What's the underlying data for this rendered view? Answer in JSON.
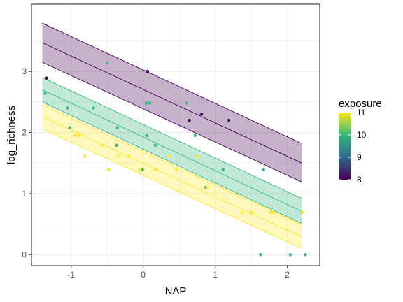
{
  "chart_data": {
    "type": "scatter",
    "title": "",
    "xlabel": "NAP",
    "ylabel": "log_richness",
    "xlim": [
      -1.55,
      2.45
    ],
    "ylim": [
      -0.18,
      4.1
    ],
    "x_ticks": [
      -1,
      0,
      1,
      2
    ],
    "x_tick_labels": [
      "-1",
      "0",
      "1",
      "2"
    ],
    "y_ticks": [
      0,
      1,
      2,
      3
    ],
    "y_tick_labels": [
      "0",
      "1",
      "2",
      "3"
    ],
    "grid": true,
    "legend": {
      "title": "exposure",
      "type": "colorbar",
      "placement": "right",
      "range": [
        8,
        11
      ],
      "breaks": [
        8,
        9,
        10,
        11
      ],
      "break_labels": [
        "8",
        "9",
        "10",
        "11"
      ]
    },
    "color_scale": {
      "8": "#440154",
      "9": "#31688e",
      "10": "#35b779",
      "11": "#fde725"
    },
    "points": [
      {
        "x": -1.34,
        "y": 2.89,
        "exposure": 8
      },
      {
        "x": 0.06,
        "y": 3.0,
        "exposure": 8
      },
      {
        "x": 0.64,
        "y": 2.2,
        "exposure": 8
      },
      {
        "x": 0.81,
        "y": 2.3,
        "exposure": 8
      },
      {
        "x": 1.19,
        "y": 2.2,
        "exposure": 8
      },
      {
        "x": -0.5,
        "y": 3.14,
        "exposure": 10
      },
      {
        "x": -1.36,
        "y": 2.64,
        "exposure": 10
      },
      {
        "x": -1.05,
        "y": 2.4,
        "exposure": 10
      },
      {
        "x": -0.69,
        "y": 2.4,
        "exposure": 10
      },
      {
        "x": -1.02,
        "y": 2.08,
        "exposure": 10
      },
      {
        "x": -0.36,
        "y": 2.08,
        "exposure": 10
      },
      {
        "x": -0.37,
        "y": 1.79,
        "exposure": 10
      },
      {
        "x": 0.04,
        "y": 2.48,
        "exposure": 10
      },
      {
        "x": 0.09,
        "y": 2.48,
        "exposure": 10
      },
      {
        "x": 0.6,
        "y": 2.48,
        "exposure": 10
      },
      {
        "x": 0.05,
        "y": 1.95,
        "exposure": 10
      },
      {
        "x": 0.72,
        "y": 1.95,
        "exposure": 10
      },
      {
        "x": 0.17,
        "y": 1.79,
        "exposure": 10
      },
      {
        "x": -0.01,
        "y": 1.39,
        "exposure": 10
      },
      {
        "x": 1.11,
        "y": 1.39,
        "exposure": 10
      },
      {
        "x": 1.67,
        "y": 1.39,
        "exposure": 10
      },
      {
        "x": 0.87,
        "y": 1.1,
        "exposure": 10
      },
      {
        "x": 1.63,
        "y": 0.0,
        "exposure": 10
      },
      {
        "x": 2.04,
        "y": 0.0,
        "exposure": 10
      },
      {
        "x": 2.25,
        "y": 0.0,
        "exposure": 10
      },
      {
        "x": -0.95,
        "y": 1.95,
        "exposure": 11
      },
      {
        "x": -0.89,
        "y": 1.95,
        "exposure": 11
      },
      {
        "x": -0.81,
        "y": 1.61,
        "exposure": 11
      },
      {
        "x": -0.57,
        "y": 1.79,
        "exposure": 11
      },
      {
        "x": -0.35,
        "y": 1.61,
        "exposure": 11
      },
      {
        "x": -0.2,
        "y": 1.61,
        "exposure": 11
      },
      {
        "x": -0.48,
        "y": 1.39,
        "exposure": 11
      },
      {
        "x": -0.05,
        "y": 1.39,
        "exposure": 11
      },
      {
        "x": 0.17,
        "y": 1.39,
        "exposure": 11
      },
      {
        "x": 0.36,
        "y": 1.61,
        "exposure": 11
      },
      {
        "x": 0.46,
        "y": 1.39,
        "exposure": 11
      },
      {
        "x": 0.74,
        "y": 1.61,
        "exposure": 11
      },
      {
        "x": 0.89,
        "y": 1.1,
        "exposure": 11
      },
      {
        "x": 1.37,
        "y": 0.69,
        "exposure": 11
      },
      {
        "x": 1.5,
        "y": 0.69,
        "exposure": 11
      },
      {
        "x": 1.77,
        "y": 0.69,
        "exposure": 11
      },
      {
        "x": 1.81,
        "y": 0.69,
        "exposure": 11
      },
      {
        "x": 2.21,
        "y": 0.69,
        "exposure": 11
      }
    ],
    "series": [
      {
        "exposure": 8,
        "x": [
          -1.4,
          2.2
        ],
        "fit": [
          3.47,
          1.5
        ],
        "lower": [
          3.15,
          1.19
        ],
        "upper": [
          3.79,
          1.82
        ]
      },
      {
        "exposure": 10,
        "x": [
          -1.4,
          2.2
        ],
        "fit": [
          2.7,
          0.71
        ],
        "lower": [
          2.5,
          0.51
        ],
        "upper": [
          2.9,
          0.92
        ]
      },
      {
        "exposure": 11,
        "x": [
          -1.4,
          2.2
        ],
        "fit": [
          2.26,
          0.29
        ],
        "lower": [
          2.06,
          0.1
        ],
        "upper": [
          2.46,
          0.49
        ]
      }
    ]
  }
}
